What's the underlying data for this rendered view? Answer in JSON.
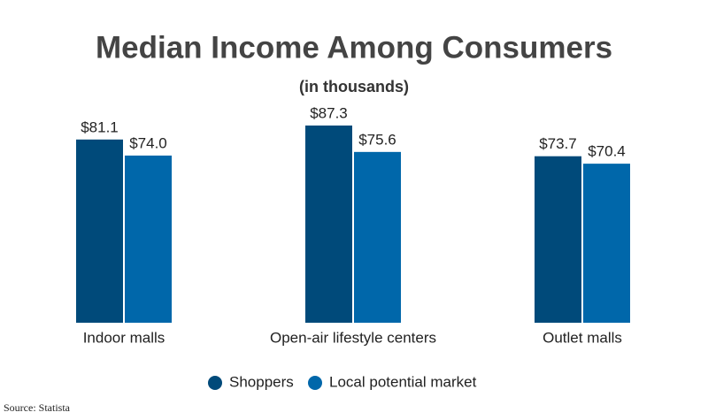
{
  "chart_data": {
    "type": "bar",
    "title": "Median Income Among Consumers",
    "subtitle": "(in thousands)",
    "categories": [
      "Indoor malls",
      "Open-air lifestyle centers",
      "Outlet malls"
    ],
    "series": [
      {
        "name": "Shoppers",
        "color": "#004a7a",
        "values": [
          81.1,
          87.3,
          73.7
        ],
        "value_labels": [
          "$81.1",
          "$87.3",
          "$73.7"
        ]
      },
      {
        "name": "Local potential market",
        "color": "#0067aa",
        "values": [
          74.0,
          75.6,
          70.4
        ],
        "value_labels": [
          "$74.0",
          "$75.6",
          "$70.4"
        ]
      }
    ],
    "source": "Source: Statista"
  }
}
